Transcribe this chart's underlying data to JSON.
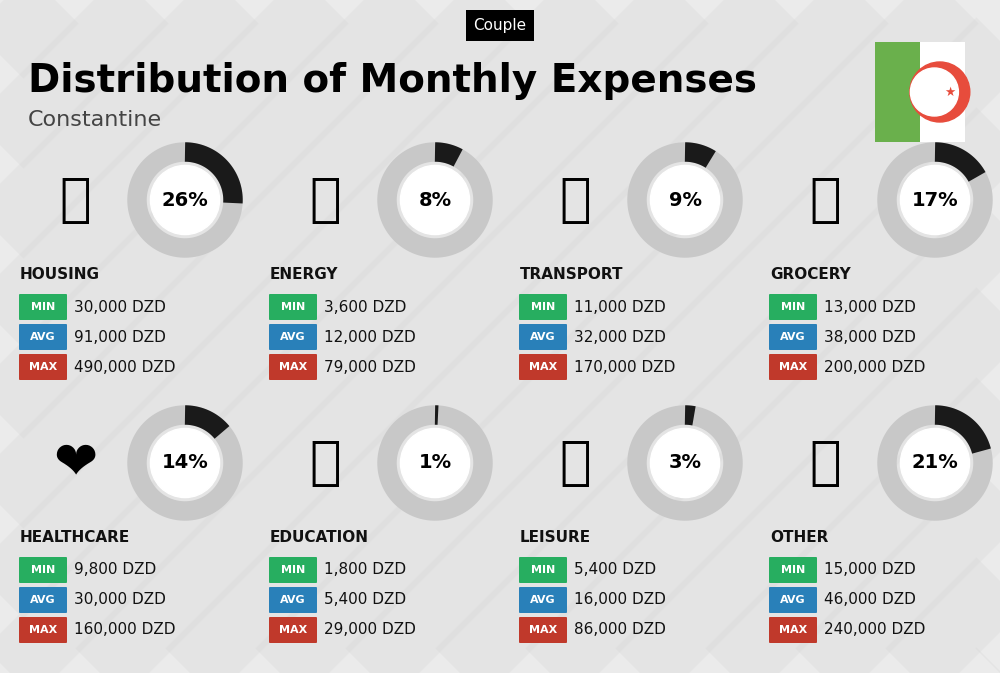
{
  "title": "Distribution of Monthly Expenses",
  "subtitle": "Constantine",
  "badge": "Couple",
  "bg_color": "#ebebeb",
  "categories": [
    {
      "name": "HOUSING",
      "pct": 26,
      "min": "30,000 DZD",
      "avg": "91,000 DZD",
      "max": "490,000 DZD",
      "row": 0,
      "col": 0
    },
    {
      "name": "ENERGY",
      "pct": 8,
      "min": "3,600 DZD",
      "avg": "12,000 DZD",
      "max": "79,000 DZD",
      "row": 0,
      "col": 1
    },
    {
      "name": "TRANSPORT",
      "pct": 9,
      "min": "11,000 DZD",
      "avg": "32,000 DZD",
      "max": "170,000 DZD",
      "row": 0,
      "col": 2
    },
    {
      "name": "GROCERY",
      "pct": 17,
      "min": "13,000 DZD",
      "avg": "38,000 DZD",
      "max": "200,000 DZD",
      "row": 0,
      "col": 3
    },
    {
      "name": "HEALTHCARE",
      "pct": 14,
      "min": "9,800 DZD",
      "avg": "30,000 DZD",
      "max": "160,000 DZD",
      "row": 1,
      "col": 0
    },
    {
      "name": "EDUCATION",
      "pct": 1,
      "min": "1,800 DZD",
      "avg": "5,400 DZD",
      "max": "29,000 DZD",
      "row": 1,
      "col": 1
    },
    {
      "name": "LEISURE",
      "pct": 3,
      "min": "5,400 DZD",
      "avg": "16,000 DZD",
      "max": "86,000 DZD",
      "row": 1,
      "col": 2
    },
    {
      "name": "OTHER",
      "pct": 21,
      "min": "15,000 DZD",
      "avg": "46,000 DZD",
      "max": "240,000 DZD",
      "row": 1,
      "col": 3
    }
  ],
  "min_color": "#27ae60",
  "avg_color": "#2980b9",
  "max_color": "#c0392b",
  "ring_color": "#1a1a1a",
  "ring_bg_color": "#c8c8c8",
  "text_color": "#111111",
  "stripe_color": "#d8d8d8",
  "icon_emojis": [
    "🏢",
    "⚡🏠",
    "🚌🚗",
    "🛒",
    "❤️",
    "🎓",
    "🛍️",
    "💰"
  ]
}
